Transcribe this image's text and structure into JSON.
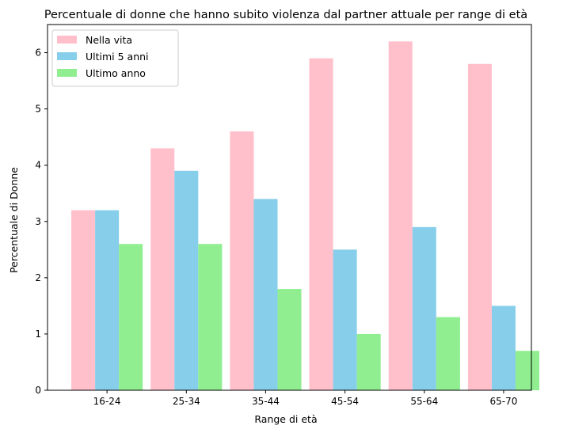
{
  "chart_data": {
    "type": "bar",
    "title": "Percentuale di donne che hanno subito violenza dal partner attuale per range di età",
    "xlabel": "Range di età",
    "ylabel": "Percentuale di Donne",
    "categories": [
      "16-24",
      "25-34",
      "35-44",
      "45-54",
      "55-64",
      "65-70"
    ],
    "series": [
      {
        "name": "Nella vita",
        "color": "#ffc0cb",
        "values": [
          3.2,
          4.3,
          4.6,
          5.9,
          6.2,
          5.8
        ]
      },
      {
        "name": "Ultimi 5 anni",
        "color": "#87ceeb",
        "values": [
          3.2,
          3.9,
          3.4,
          2.5,
          2.9,
          1.5
        ]
      },
      {
        "name": "Ultimo anno",
        "color": "#90ee90",
        "values": [
          2.6,
          2.6,
          1.8,
          1.0,
          1.3,
          0.7
        ]
      }
    ],
    "ylim": [
      0,
      6.5
    ],
    "yticks": [
      0,
      1,
      2,
      3,
      4,
      5,
      6
    ],
    "grid": false,
    "legend_position": "top-left"
  }
}
